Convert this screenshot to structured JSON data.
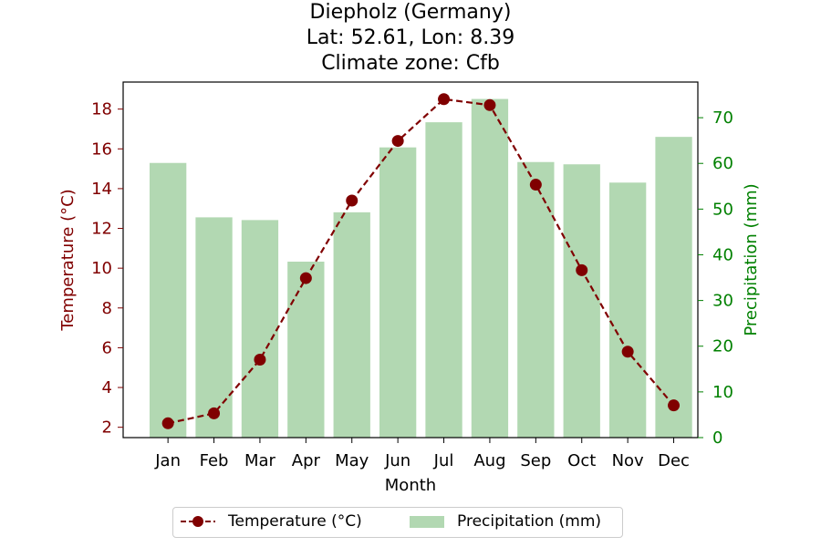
{
  "title_lines": [
    "Diepholz (Germany)",
    "Lat: 52.61, Lon: 8.39",
    "Climate zone: Cfb"
  ],
  "colors": {
    "temperature": "#800000",
    "precipitation_bar": "#b2d8b2",
    "precipitation_axis": "#008000"
  },
  "legend": {
    "temperature": "Temperature (°C)",
    "precipitation": "Precipitation (mm)"
  },
  "chart_data": {
    "type": "bar",
    "categories": [
      "Jan",
      "Feb",
      "Mar",
      "Apr",
      "May",
      "Jun",
      "Jul",
      "Aug",
      "Sep",
      "Oct",
      "Nov",
      "Dec"
    ],
    "xlabel": "Month",
    "series": [
      {
        "name": "Temperature (°C)",
        "type": "line",
        "axis": "left",
        "values": [
          2.2,
          2.7,
          5.4,
          9.5,
          13.4,
          16.4,
          18.5,
          18.2,
          14.2,
          9.9,
          5.8,
          3.1
        ]
      },
      {
        "name": "Precipitation (mm)",
        "type": "bar",
        "axis": "right",
        "values": [
          60.1,
          48.2,
          47.6,
          38.5,
          49.3,
          63.5,
          69.0,
          74.1,
          60.3,
          59.8,
          55.8,
          65.8
        ]
      }
    ],
    "left_axis": {
      "label": "Temperature (°C)",
      "lim": [
        1.48,
        19.36
      ],
      "ticks": [
        2,
        4,
        6,
        8,
        10,
        12,
        14,
        16,
        18
      ]
    },
    "right_axis": {
      "label": "Precipitation (mm)",
      "lim": [
        0,
        77.8
      ],
      "ticks": [
        0,
        10,
        20,
        30,
        40,
        50,
        60,
        70
      ]
    },
    "grid": false,
    "legend_position": "bottom-center"
  }
}
